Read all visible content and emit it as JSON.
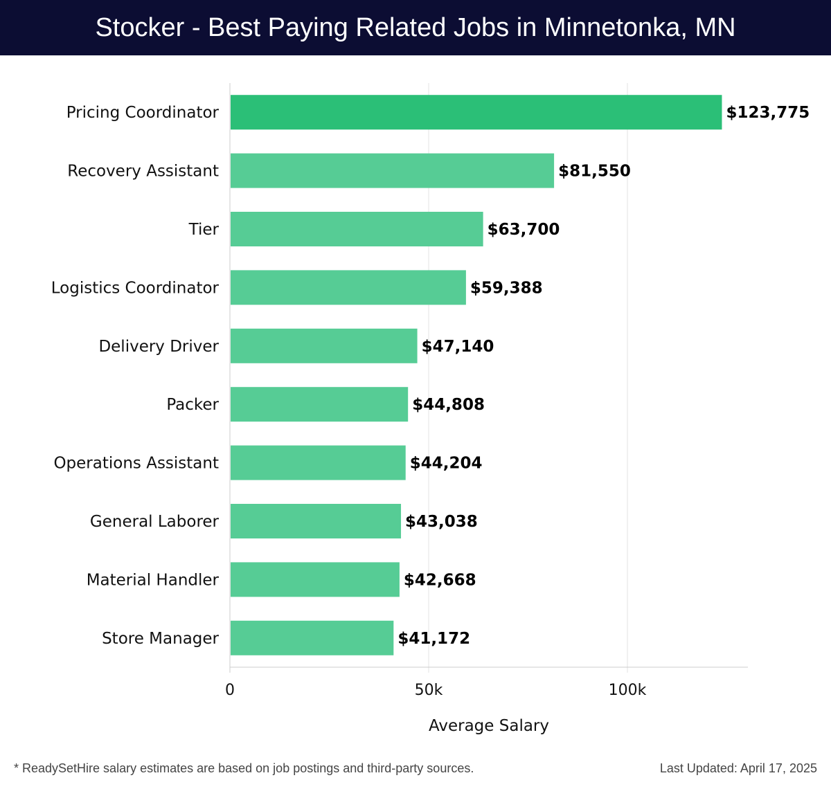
{
  "header": {
    "title": "Stocker - Best Paying Related Jobs in Minnetonka, MN"
  },
  "chart_data": {
    "type": "bar",
    "orientation": "horizontal",
    "categories": [
      "Pricing Coordinator",
      "Recovery Assistant",
      "Tier",
      "Logistics Coordinator",
      "Delivery Driver",
      "Packer",
      "Operations Assistant",
      "General Laborer",
      "Material Handler",
      "Store Manager"
    ],
    "values": [
      123775,
      81550,
      63700,
      59388,
      47140,
      44808,
      44204,
      43038,
      42668,
      41172
    ],
    "value_labels": [
      "$123,775",
      "$81,550",
      "$63,700",
      "$59,388",
      "$47,140",
      "$44,808",
      "$44,204",
      "$43,038",
      "$42,668",
      "$41,172"
    ],
    "xlabel": "Average Salary",
    "ylabel": "",
    "xlim": [
      0,
      130000
    ],
    "xticks": [
      0,
      50000,
      100000
    ],
    "xtick_labels": [
      "0",
      "50k",
      "100k"
    ],
    "grid": true,
    "colors": {
      "top_bar": "#2bbf77",
      "bar": "#56cc95",
      "grid": "#e3e3e3",
      "axis": "#cccccc"
    }
  },
  "footer": {
    "note": "* ReadySetHire salary estimates are based on job postings and third-party sources.",
    "updated": "Last Updated: April 17, 2025"
  }
}
